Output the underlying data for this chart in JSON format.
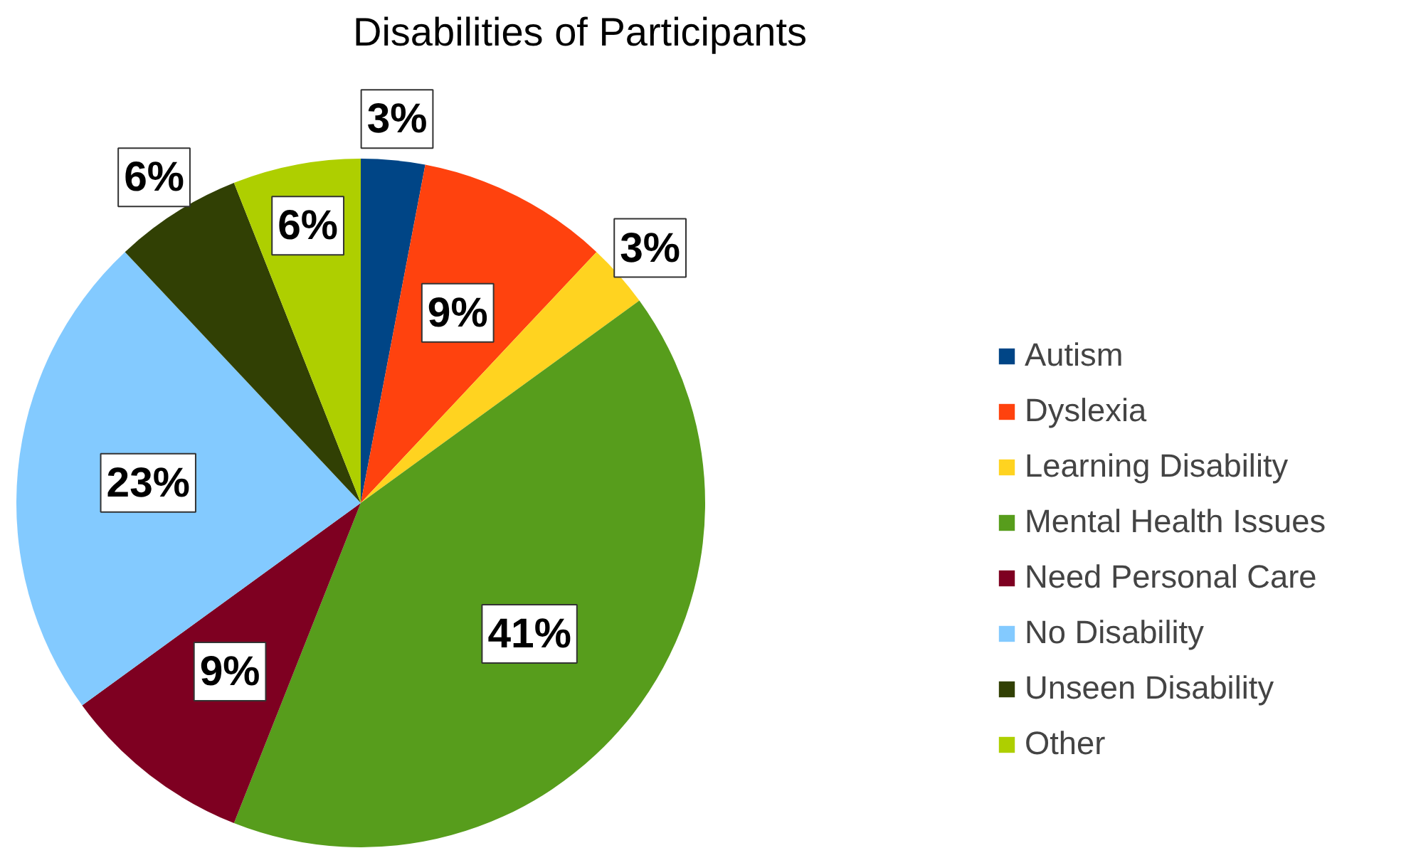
{
  "chart_data": {
    "type": "pie",
    "title": "Disabilities of Participants",
    "categories": [
      "Autism",
      "Dyslexia",
      "Learning Disability",
      "Mental Health Issues",
      "Need Personal Care",
      "No Disability",
      "Unseen Disability",
      "Other"
    ],
    "values": [
      3,
      9,
      3,
      41,
      9,
      23,
      6,
      6
    ],
    "colors": [
      "#004586",
      "#ff420e",
      "#ffd320",
      "#579d1c",
      "#7e0021",
      "#83caff",
      "#314004",
      "#aecf00"
    ],
    "value_labels": [
      "3%",
      "9%",
      "3%",
      "41%",
      "9%",
      "23%",
      "6%",
      "6%"
    ],
    "legend": "right"
  }
}
